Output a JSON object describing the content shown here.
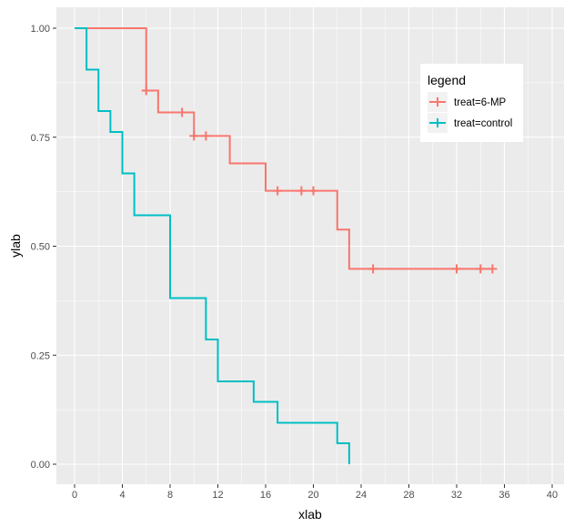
{
  "chart_data": {
    "type": "line",
    "step": true,
    "xlabel": "xlab",
    "ylabel": "ylab",
    "xlim": [
      -1.5,
      41
    ],
    "ylim": [
      -0.05,
      1.05
    ],
    "xticks": [
      0,
      4,
      8,
      12,
      16,
      20,
      24,
      28,
      32,
      36,
      40
    ],
    "yticks": [
      0,
      0.25,
      0.5,
      0.75,
      1
    ],
    "ytick_labels": [
      "0.00",
      "0.25",
      "0.50",
      "0.75",
      "1.00"
    ],
    "grid": true,
    "legend": {
      "title": "legend",
      "placement": "right"
    },
    "series": [
      {
        "name": "treat=6-MP",
        "color": "#F8766D",
        "x": [
          0,
          6,
          7,
          10,
          13,
          16,
          22,
          23,
          35
        ],
        "y": [
          1,
          0.857,
          0.807,
          0.753,
          0.69,
          0.627,
          0.538,
          0.448,
          0.448
        ],
        "censored_x": [
          6,
          9,
          10,
          11,
          17,
          19,
          20,
          25,
          32,
          34,
          35
        ]
      },
      {
        "name": "treat=control",
        "color": "#00BFC4",
        "x": [
          0,
          1,
          2,
          3,
          4,
          5,
          8,
          11,
          12,
          15,
          17,
          22,
          23
        ],
        "y": [
          1,
          0.905,
          0.81,
          0.762,
          0.667,
          0.571,
          0.381,
          0.286,
          0.19,
          0.143,
          0.095,
          0.048,
          0
        ],
        "censored_x": []
      }
    ]
  }
}
